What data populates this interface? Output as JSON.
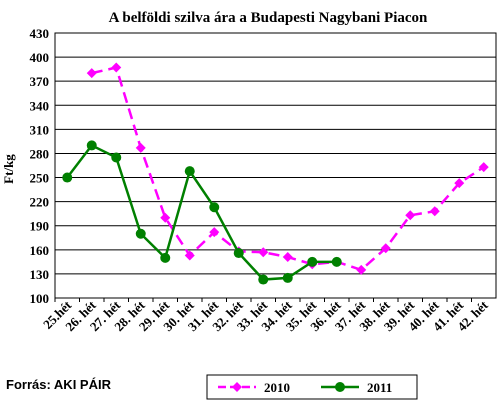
{
  "source": "Forrás: AKI PÁIR",
  "chart_data": {
    "type": "line",
    "title": "A belföldi szilva ára a Budapesti Nagybani Piacon",
    "ylabel": "Ft/kg",
    "xlabel": "",
    "ylim": [
      100,
      430
    ],
    "yticks": [
      100,
      130,
      160,
      190,
      220,
      250,
      280,
      310,
      340,
      370,
      400,
      430
    ],
    "grid": true,
    "legend": "bottom",
    "categories": [
      "25.hét",
      "26. hét",
      "27. hét",
      "28. hét",
      "29. hét",
      "30. hét",
      "31. hét",
      "32. hét",
      "33. hét",
      "34. hét",
      "35. hét",
      "36. hét",
      "37. hét",
      "38. hét",
      "39. hét",
      "40. hét",
      "41. hét",
      "42. hét"
    ],
    "series": [
      {
        "name": "2010",
        "color": "#ff00ff",
        "marker": "diamond",
        "dash": true,
        "values": [
          null,
          380,
          387,
          287,
          200,
          153,
          182,
          158,
          157,
          151,
          142,
          145,
          135,
          162,
          203,
          208,
          243,
          263
        ]
      },
      {
        "name": "2011",
        "color": "#008000",
        "marker": "circle",
        "dash": false,
        "values": [
          250,
          290,
          275,
          180,
          150,
          258,
          213,
          156,
          123,
          125,
          145,
          145,
          null,
          null,
          null,
          null,
          null,
          null
        ]
      }
    ]
  }
}
